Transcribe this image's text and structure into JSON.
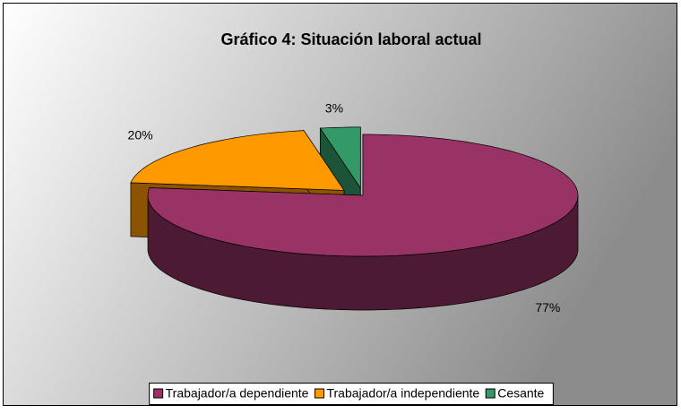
{
  "chart_data": {
    "type": "pie",
    "title": "Gráfico 4: Situación laboral actual",
    "categories": [
      "Trabajador/a dependiente",
      "Trabajador/a independiente",
      "Cesante"
    ],
    "values": [
      77,
      20,
      3
    ],
    "value_labels": [
      "77%",
      "20%",
      "3%"
    ],
    "colors": [
      "#993366",
      "#ff9900",
      "#339966"
    ],
    "legend": "bottom"
  }
}
